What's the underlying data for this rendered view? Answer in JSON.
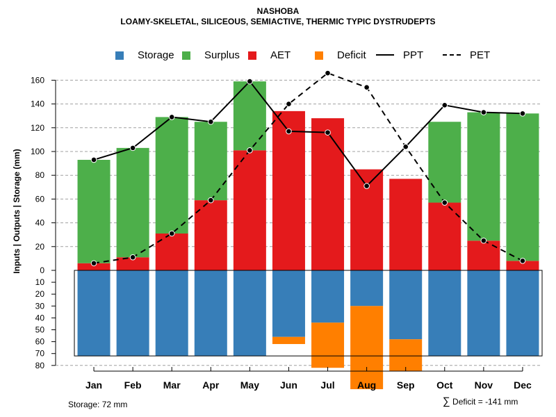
{
  "chart_data": {
    "type": "bar",
    "title": "NASHOBA",
    "subtitle": "LOAMY-SKELETAL, SILICEOUS, SEMIACTIVE, THERMIC TYPIC DYSTRUDEPTS",
    "ylabel": "Inputs | Outputs | Storage    (mm)",
    "categories": [
      "Jan",
      "Feb",
      "Mar",
      "Apr",
      "May",
      "Jun",
      "Jul",
      "Aug",
      "Sep",
      "Oct",
      "Nov",
      "Dec"
    ],
    "ylim_top": [
      0,
      170
    ],
    "ylim_bottom": [
      0,
      80
    ],
    "yticks_top": [
      0,
      20,
      40,
      60,
      80,
      100,
      120,
      140,
      160
    ],
    "yticks_bottom": [
      10,
      20,
      30,
      40,
      50,
      60,
      70,
      80
    ],
    "storage_capacity": 72,
    "series": [
      {
        "name": "AET",
        "color": "#e41a1c",
        "values": [
          6,
          11,
          31,
          59,
          101,
          134,
          128,
          85,
          77,
          57,
          25,
          8
        ]
      },
      {
        "name": "Surplus",
        "color": "#4daf4a",
        "values": [
          87,
          92,
          98,
          66,
          58,
          0,
          0,
          0,
          0,
          68,
          108,
          124
        ]
      },
      {
        "name": "Storage",
        "color": "#377eb8",
        "values": [
          72,
          72,
          72,
          72,
          72,
          56,
          44,
          30,
          58,
          72,
          72,
          72
        ]
      },
      {
        "name": "Deficit",
        "color": "#ff7f00",
        "values": [
          0,
          0,
          0,
          0,
          0,
          6,
          38,
          70,
          27,
          0,
          0,
          0
        ]
      },
      {
        "name": "PPT",
        "values": [
          93,
          103,
          129,
          125,
          159,
          117,
          116,
          71,
          104,
          139,
          133,
          132
        ]
      },
      {
        "name": "PET",
        "values": [
          6,
          11,
          31,
          59,
          101,
          140,
          166,
          154,
          104,
          57,
          25,
          8
        ]
      }
    ],
    "legend": [
      {
        "name": "Storage",
        "kind": "box",
        "color": "#377eb8"
      },
      {
        "name": "Surplus",
        "kind": "box",
        "color": "#4daf4a"
      },
      {
        "name": "AET",
        "kind": "box",
        "color": "#e41a1c"
      },
      {
        "name": "Deficit",
        "kind": "box",
        "color": "#ff7f00"
      },
      {
        "name": "PPT",
        "kind": "solid-line"
      },
      {
        "name": "PET",
        "kind": "dashed-line"
      }
    ],
    "annotations": {
      "storage_note": "Storage: 72 mm",
      "deficit_symbol": "∑",
      "deficit_note": "Deficit = -141 mm"
    }
  }
}
